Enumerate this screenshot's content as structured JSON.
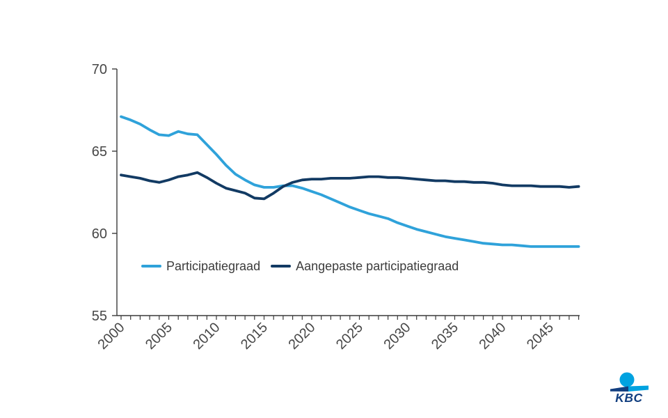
{
  "chart_data": {
    "type": "line",
    "title": "",
    "xlabel": "",
    "ylabel": "",
    "grid": false,
    "legend_position": "inside-bottom-left",
    "ylim": [
      55,
      70
    ],
    "y_ticks": [
      55,
      60,
      65,
      70
    ],
    "x_tick_labels": [
      "2000",
      "2005",
      "2010",
      "2015",
      "2020",
      "2025",
      "2030",
      "2035",
      "2040",
      "2045"
    ],
    "axis_color": "#3a3a3a",
    "tick_label_color": "#474747",
    "x": [
      2000,
      2001,
      2002,
      2003,
      2004,
      2005,
      2006,
      2007,
      2008,
      2009,
      2010,
      2011,
      2012,
      2013,
      2014,
      2015,
      2016,
      2017,
      2018,
      2019,
      2020,
      2021,
      2022,
      2023,
      2024,
      2025,
      2026,
      2027,
      2028,
      2029,
      2030,
      2031,
      2032,
      2033,
      2034,
      2035,
      2036,
      2037,
      2038,
      2039,
      2040,
      2041,
      2042,
      2043,
      2044,
      2045,
      2046,
      2047,
      2048
    ],
    "series": [
      {
        "name": "Participatiegraad",
        "color": "#2fa2da",
        "values": [
          67.1,
          66.9,
          66.65,
          66.3,
          66.0,
          65.95,
          66.2,
          66.05,
          66.0,
          65.4,
          64.8,
          64.15,
          63.6,
          63.25,
          62.95,
          62.8,
          62.8,
          62.9,
          62.9,
          62.75,
          62.55,
          62.35,
          62.1,
          61.85,
          61.6,
          61.4,
          61.2,
          61.05,
          60.9,
          60.65,
          60.45,
          60.25,
          60.1,
          59.95,
          59.8,
          59.7,
          59.6,
          59.5,
          59.4,
          59.35,
          59.3,
          59.3,
          59.25,
          59.2,
          59.2,
          59.2,
          59.2,
          59.2,
          59.2
        ]
      },
      {
        "name": "Aangepaste participatiegraad",
        "color": "#123a63",
        "values": [
          63.55,
          63.45,
          63.35,
          63.2,
          63.1,
          63.25,
          63.45,
          63.55,
          63.7,
          63.4,
          63.05,
          62.75,
          62.6,
          62.45,
          62.15,
          62.1,
          62.45,
          62.85,
          63.1,
          63.25,
          63.3,
          63.3,
          63.35,
          63.35,
          63.35,
          63.4,
          63.45,
          63.45,
          63.4,
          63.4,
          63.35,
          63.3,
          63.25,
          63.2,
          63.2,
          63.15,
          63.15,
          63.1,
          63.1,
          63.05,
          62.95,
          62.9,
          62.9,
          62.9,
          62.85,
          62.85,
          62.85,
          62.8,
          62.85
        ]
      }
    ]
  },
  "logo": {
    "text": "KBC",
    "light_blue": "#00a2e0",
    "dark_blue": "#123f80"
  }
}
